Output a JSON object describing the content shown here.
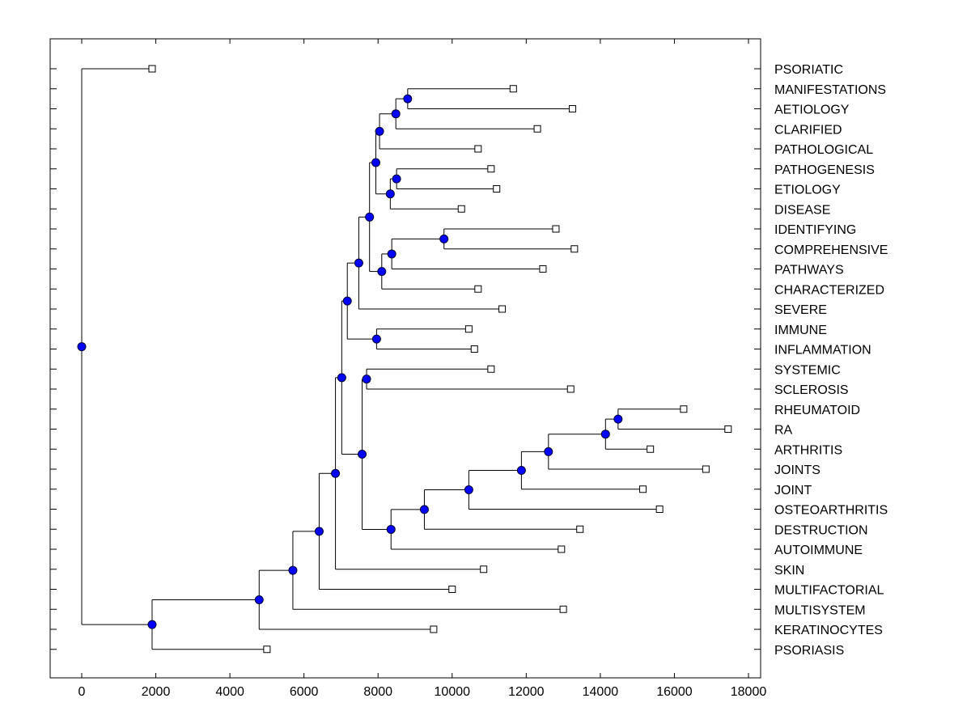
{
  "chart_data": {
    "type": "dendrogram",
    "title": "",
    "xlabel": "",
    "ylabel": "",
    "xlim": [
      -800,
      18400
    ],
    "xticks": [
      0,
      2000,
      4000,
      6000,
      8000,
      10000,
      12000,
      14000,
      16000,
      18000
    ],
    "xtick_labels": [
      "0",
      "2000",
      "4000",
      "6000",
      "8000",
      "10000",
      "12000",
      "14000",
      "16000",
      "18000"
    ],
    "leaves": [
      {
        "label": "PSORIATIC",
        "value": 1900
      },
      {
        "label": "MANIFESTATIONS",
        "value": 11650
      },
      {
        "label": "AETIOLOGY",
        "value": 13250
      },
      {
        "label": "CLARIFIED",
        "value": 12300
      },
      {
        "label": "PATHOLOGICAL",
        "value": 10700
      },
      {
        "label": "PATHOGENESIS",
        "value": 11050
      },
      {
        "label": "ETIOLOGY",
        "value": 11200
      },
      {
        "label": "DISEASE",
        "value": 10250
      },
      {
        "label": "IDENTIFYING",
        "value": 12800
      },
      {
        "label": "COMPREHENSIVE",
        "value": 13300
      },
      {
        "label": "PATHWAYS",
        "value": 12450
      },
      {
        "label": "CHARACTERIZED",
        "value": 10700
      },
      {
        "label": "SEVERE",
        "value": 11350
      },
      {
        "label": "IMMUNE",
        "value": 10450
      },
      {
        "label": "INFLAMMATION",
        "value": 10600
      },
      {
        "label": "SYSTEMIC",
        "value": 11050
      },
      {
        "label": "SCLEROSIS",
        "value": 13200
      },
      {
        "label": "RHEUMATOID",
        "value": 16250
      },
      {
        "label": "RA",
        "value": 17450
      },
      {
        "label": "ARTHRITIS",
        "value": 15350
      },
      {
        "label": "JOINTS",
        "value": 16850
      },
      {
        "label": "JOINT",
        "value": 15150
      },
      {
        "label": "OSTEOARTHRITIS",
        "value": 15600
      },
      {
        "label": "DESTRUCTION",
        "value": 13450
      },
      {
        "label": "AUTOIMMUNE",
        "value": 12950
      },
      {
        "label": "SKIN",
        "value": 10850
      },
      {
        "label": "MULTIFACTORIAL",
        "value": 10000
      },
      {
        "label": "MULTISYSTEM",
        "value": 13000
      },
      {
        "label": "KERATINOCYTES",
        "value": 9500
      },
      {
        "label": "PSORIASIS",
        "value": 5000
      }
    ],
    "merges": [
      {
        "id": "n1",
        "value": 8800,
        "children": [
          "MANIFESTATIONS",
          "AETIOLOGY"
        ]
      },
      {
        "id": "n2",
        "value": 8480,
        "children": [
          "n1",
          "CLARIFIED"
        ]
      },
      {
        "id": "n3",
        "value": 8040,
        "children": [
          "n2",
          "PATHOLOGICAL"
        ]
      },
      {
        "id": "n4",
        "value": 8500,
        "children": [
          "PATHOGENESIS",
          "ETIOLOGY"
        ]
      },
      {
        "id": "n5",
        "value": 8330,
        "children": [
          "n4",
          "DISEASE"
        ]
      },
      {
        "id": "n6",
        "value": 7940,
        "children": [
          "n3",
          "n5"
        ]
      },
      {
        "id": "n7",
        "value": 9780,
        "children": [
          "IDENTIFYING",
          "COMPREHENSIVE"
        ]
      },
      {
        "id": "n8",
        "value": 8370,
        "children": [
          "n7",
          "PATHWAYS"
        ]
      },
      {
        "id": "n9",
        "value": 8100,
        "children": [
          "n8",
          "CHARACTERIZED"
        ]
      },
      {
        "id": "n10",
        "value": 7770,
        "children": [
          "n6",
          "n9"
        ]
      },
      {
        "id": "n11",
        "value": 7480,
        "children": [
          "n10",
          "SEVERE"
        ]
      },
      {
        "id": "n12",
        "value": 7960,
        "children": [
          "IMMUNE",
          "INFLAMMATION"
        ]
      },
      {
        "id": "n13",
        "value": 7170,
        "children": [
          "n11",
          "n12"
        ]
      },
      {
        "id": "n14",
        "value": 7690,
        "children": [
          "SYSTEMIC",
          "SCLEROSIS"
        ]
      },
      {
        "id": "n15",
        "value": 14480,
        "children": [
          "RHEUMATOID",
          "RA"
        ]
      },
      {
        "id": "n16",
        "value": 14140,
        "children": [
          "n15",
          "ARTHRITIS"
        ]
      },
      {
        "id": "n17",
        "value": 12600,
        "children": [
          "n16",
          "JOINTS"
        ]
      },
      {
        "id": "n18",
        "value": 11870,
        "children": [
          "n17",
          "JOINT"
        ]
      },
      {
        "id": "n19",
        "value": 10450,
        "children": [
          "n18",
          "OSTEOARTHRITIS"
        ]
      },
      {
        "id": "n20",
        "value": 9250,
        "children": [
          "n19",
          "DESTRUCTION"
        ]
      },
      {
        "id": "n21",
        "value": 8350,
        "children": [
          "n20",
          "AUTOIMMUNE"
        ]
      },
      {
        "id": "n22",
        "value": 7570,
        "children": [
          "n14",
          "n21"
        ]
      },
      {
        "id": "n23",
        "value": 7020,
        "children": [
          "n13",
          "n22"
        ]
      },
      {
        "id": "n24",
        "value": 6850,
        "children": [
          "n23",
          "SKIN"
        ]
      },
      {
        "id": "n25",
        "value": 6410,
        "children": [
          "n24",
          "MULTIFACTORIAL"
        ]
      },
      {
        "id": "n26",
        "value": 5700,
        "children": [
          "n25",
          "MULTISYSTEM"
        ]
      },
      {
        "id": "n27",
        "value": 4790,
        "children": [
          "n26",
          "KERATINOCYTES"
        ]
      },
      {
        "id": "n28",
        "value": 1900,
        "children": [
          "n27",
          "PSORIASIS"
        ]
      },
      {
        "id": "n29",
        "value": 0,
        "children": [
          "PSORIATIC",
          "n28"
        ]
      }
    ],
    "colors": {
      "node_fill": "#0000ff",
      "leaf_fill": "#ffffff",
      "line": "#000000",
      "background": "#ffffff"
    }
  }
}
